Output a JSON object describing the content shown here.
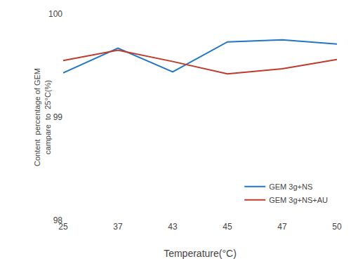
{
  "chart_data": {
    "type": "line",
    "categories": [
      "25",
      "37",
      "43",
      "45",
      "47",
      "50"
    ],
    "series": [
      {
        "name": "GEM 3g+NS",
        "color": "#2176C5",
        "values": [
          99.43,
          99.67,
          99.44,
          99.73,
          99.75,
          99.71
        ]
      },
      {
        "name": "GEM 3g+NS+AU",
        "color": "#C0392B",
        "values": [
          99.55,
          99.65,
          99.54,
          99.42,
          99.47,
          99.56
        ]
      }
    ],
    "xlabel": "Temperature(°C)",
    "ylabel": "Content  percentage of GEM\ncampare  to  25°C(%)",
    "ylim": [
      98,
      100
    ],
    "yticks": [
      98,
      99,
      100
    ],
    "grid": false,
    "legend": "lower right"
  }
}
